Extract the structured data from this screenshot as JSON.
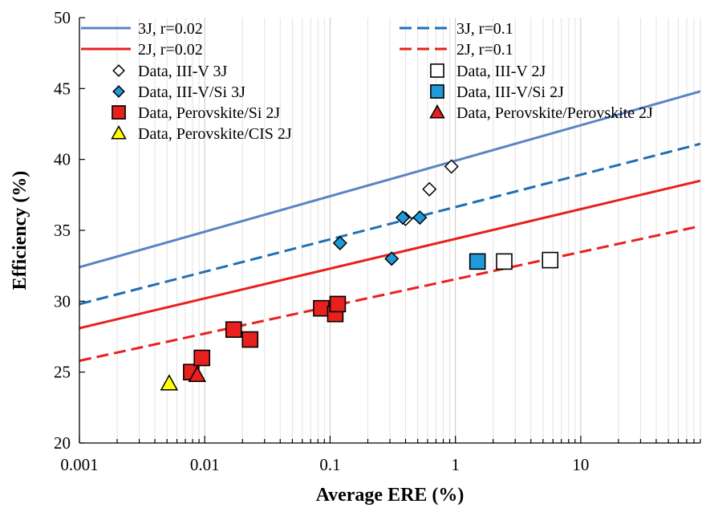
{
  "chart_data": {
    "type": "scatter",
    "xlabel": "Average ERE (%)",
    "ylabel": "Efficiency (%)",
    "x_scale": "log",
    "xlim": [
      0.001,
      90
    ],
    "ylim": [
      20,
      50
    ],
    "x_ticks": [
      0.001,
      0.01,
      0.1,
      1,
      10
    ],
    "x_tick_labels": [
      "0.001",
      "0.01",
      "0.1",
      "1",
      "10"
    ],
    "y_ticks": [
      20,
      25,
      30,
      35,
      40,
      45,
      50
    ],
    "y_tick_labels": [
      "20",
      "25",
      "30",
      "35",
      "40",
      "45",
      "50"
    ],
    "grid": "vertical minor and major gridlines on x",
    "legend_position": "top, two columns",
    "lines": [
      {
        "name": "3J, r=0.02",
        "color": "#5b84c4",
        "dash": "solid",
        "x": [
          0.001,
          90
        ],
        "y": [
          32.4,
          44.8
        ]
      },
      {
        "name": "3J, r=0.1",
        "color": "#1f6fb5",
        "dash": "dashed",
        "x": [
          0.001,
          90
        ],
        "y": [
          29.8,
          41.1
        ]
      },
      {
        "name": "2J, r=0.02",
        "color": "#e8201e",
        "dash": "solid",
        "x": [
          0.001,
          90
        ],
        "y": [
          28.1,
          38.5
        ]
      },
      {
        "name": "2J, r=0.1",
        "color": "#e8201e",
        "dash": "dashed",
        "x": [
          0.001,
          90
        ],
        "y": [
          25.8,
          35.3
        ]
      }
    ],
    "series": [
      {
        "name": "Data, III-V 3J",
        "marker": "diamond",
        "fill": "#ffffff",
        "stroke": "#000000",
        "points": [
          [
            0.4,
            35.8
          ],
          [
            0.62,
            37.9
          ],
          [
            0.93,
            39.5
          ]
        ]
      },
      {
        "name": "Data, III-V 2J",
        "marker": "square",
        "fill": "#ffffff",
        "stroke": "#000000",
        "points": [
          [
            2.45,
            32.8
          ],
          [
            5.7,
            32.9
          ]
        ]
      },
      {
        "name": "Data, III-V/Si 3J",
        "marker": "diamond",
        "fill": "#1f9ad6",
        "stroke": "#000000",
        "points": [
          [
            0.12,
            34.1
          ],
          [
            0.31,
            33.0
          ],
          [
            0.38,
            35.9
          ],
          [
            0.52,
            35.9
          ]
        ]
      },
      {
        "name": "Data, III-V/Si 2J",
        "marker": "square",
        "fill": "#1f9ad6",
        "stroke": "#000000",
        "points": [
          [
            1.5,
            32.8
          ]
        ]
      },
      {
        "name": "Data, Perovskite/Si 2J",
        "marker": "square",
        "fill": "#e8201e",
        "stroke": "#000000",
        "points": [
          [
            0.0078,
            25.0
          ],
          [
            0.0095,
            26.0
          ],
          [
            0.017,
            28.0
          ],
          [
            0.023,
            27.3
          ],
          [
            0.085,
            29.5
          ],
          [
            0.11,
            29.1
          ],
          [
            0.115,
            29.8
          ]
        ]
      },
      {
        "name": "Data, Perovskite/Perovskite 2J",
        "marker": "triangle",
        "fill": "#e8201e",
        "stroke": "#000000",
        "points": [
          [
            0.0087,
            24.8
          ]
        ]
      },
      {
        "name": "Data, Perovskite/CIS 2J",
        "marker": "triangle",
        "fill": "#ffff00",
        "stroke": "#000000",
        "points": [
          [
            0.0052,
            24.2
          ]
        ]
      }
    ]
  }
}
